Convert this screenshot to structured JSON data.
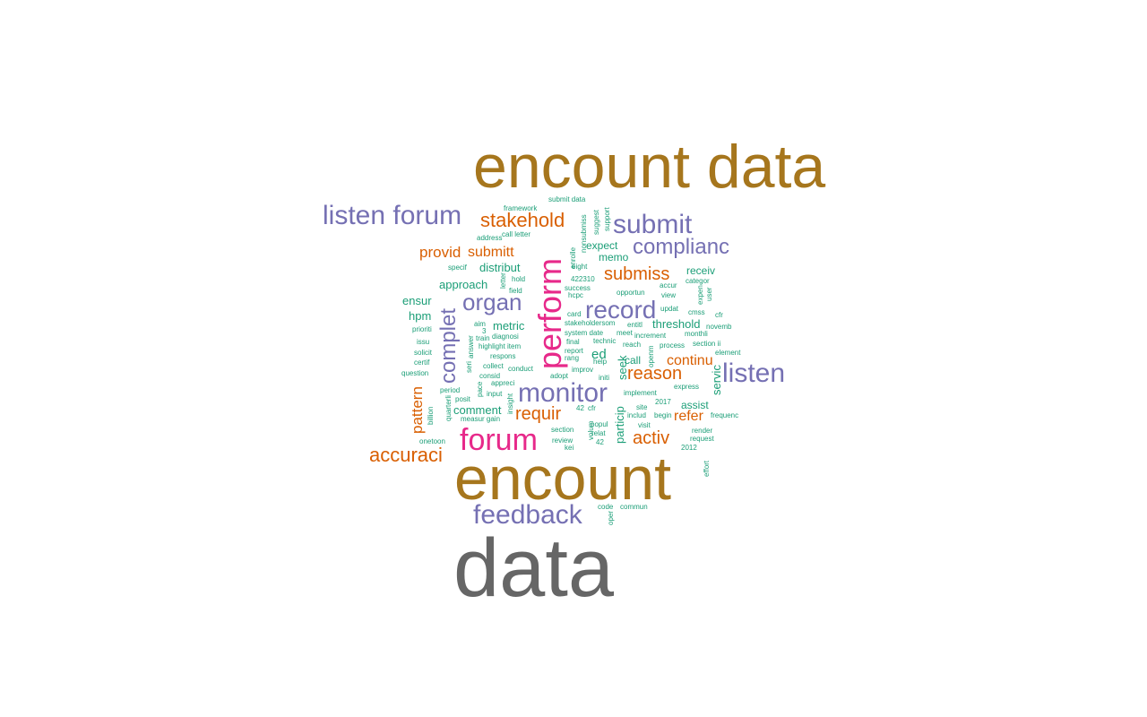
{
  "palette": {
    "gray": "#666666",
    "brown": "#A6761D",
    "magenta": "#E7298A",
    "purple": "#7570B3",
    "orange": "#D95F02",
    "teal": "#1B9E77"
  },
  "words": [
    {
      "text": "data",
      "color": "gray"
    },
    {
      "text": "encount data",
      "color": "brown"
    },
    {
      "text": "encount",
      "color": "brown"
    },
    {
      "text": "perform",
      "color": "magenta"
    },
    {
      "text": "forum",
      "color": "magenta"
    },
    {
      "text": "listen forum",
      "color": "purple"
    },
    {
      "text": "submit",
      "color": "purple"
    },
    {
      "text": "complianc",
      "color": "purple"
    },
    {
      "text": "record",
      "color": "purple"
    },
    {
      "text": "monitor",
      "color": "purple"
    },
    {
      "text": "listen",
      "color": "purple"
    },
    {
      "text": "feedback",
      "color": "purple"
    },
    {
      "text": "organ",
      "color": "purple"
    },
    {
      "text": "complet",
      "color": "purple"
    },
    {
      "text": "stakehold",
      "color": "orange"
    },
    {
      "text": "accuraci",
      "color": "orange"
    },
    {
      "text": "reason",
      "color": "orange"
    },
    {
      "text": "requir",
      "color": "orange"
    },
    {
      "text": "activ",
      "color": "orange"
    },
    {
      "text": "submiss",
      "color": "orange"
    },
    {
      "text": "provid",
      "color": "orange"
    },
    {
      "text": "submitt",
      "color": "orange"
    },
    {
      "text": "continu",
      "color": "orange"
    },
    {
      "text": "refer",
      "color": "orange"
    },
    {
      "text": "pattern",
      "color": "orange"
    },
    {
      "text": "approach",
      "color": "teal"
    },
    {
      "text": "distribut",
      "color": "teal"
    },
    {
      "text": "ensur",
      "color": "teal"
    },
    {
      "text": "hpm",
      "color": "teal"
    },
    {
      "text": "metric",
      "color": "teal"
    },
    {
      "text": "comment",
      "color": "teal"
    },
    {
      "text": "threshold",
      "color": "teal"
    },
    {
      "text": "receiv",
      "color": "teal"
    },
    {
      "text": "memo",
      "color": "teal"
    },
    {
      "text": "expect",
      "color": "teal"
    },
    {
      "text": "call",
      "color": "teal"
    },
    {
      "text": "ed",
      "color": "teal"
    },
    {
      "text": "assist",
      "color": "teal"
    },
    {
      "text": "servic",
      "color": "teal"
    },
    {
      "text": "seek",
      "color": "teal"
    },
    {
      "text": "particip",
      "color": "teal"
    },
    {
      "text": "submit data",
      "color": "teal"
    },
    {
      "text": "framework",
      "color": "teal"
    },
    {
      "text": "call letter",
      "color": "teal"
    },
    {
      "text": "address",
      "color": "teal"
    },
    {
      "text": "specif",
      "color": "teal"
    },
    {
      "text": "hold",
      "color": "teal"
    },
    {
      "text": "field",
      "color": "teal"
    },
    {
      "text": "letter",
      "color": "teal"
    },
    {
      "text": "aim",
      "color": "teal"
    },
    {
      "text": "3",
      "color": "teal"
    },
    {
      "text": "train",
      "color": "teal"
    },
    {
      "text": "diagnosi",
      "color": "teal"
    },
    {
      "text": "highlight item",
      "color": "teal"
    },
    {
      "text": "respons",
      "color": "teal"
    },
    {
      "text": "collect",
      "color": "teal"
    },
    {
      "text": "conduct",
      "color": "teal"
    },
    {
      "text": "consid",
      "color": "teal"
    },
    {
      "text": "appreci",
      "color": "teal"
    },
    {
      "text": "input",
      "color": "teal"
    },
    {
      "text": "period",
      "color": "teal"
    },
    {
      "text": "posit",
      "color": "teal"
    },
    {
      "text": "measur gain",
      "color": "teal"
    },
    {
      "text": "prioriti",
      "color": "teal"
    },
    {
      "text": "issu",
      "color": "teal"
    },
    {
      "text": "solicit",
      "color": "teal"
    },
    {
      "text": "certif",
      "color": "teal"
    },
    {
      "text": "question",
      "color": "teal"
    },
    {
      "text": "onetoon",
      "color": "teal"
    },
    {
      "text": "billion",
      "color": "teal"
    },
    {
      "text": "quarterli",
      "color": "teal"
    },
    {
      "text": "answer",
      "color": "teal"
    },
    {
      "text": "seri",
      "color": "teal"
    },
    {
      "text": "insight",
      "color": "teal"
    },
    {
      "text": "pace",
      "color": "teal"
    },
    {
      "text": "suggest",
      "color": "teal"
    },
    {
      "text": "support",
      "color": "teal"
    },
    {
      "text": "nonsubmiss",
      "color": "teal"
    },
    {
      "text": "enrolle",
      "color": "teal"
    },
    {
      "text": "eight",
      "color": "teal"
    },
    {
      "text": "success",
      "color": "teal"
    },
    {
      "text": "422310",
      "color": "teal"
    },
    {
      "text": "hcpc",
      "color": "teal"
    },
    {
      "text": "opportun",
      "color": "teal"
    },
    {
      "text": "card",
      "color": "teal"
    },
    {
      "text": "stakeholdersom",
      "color": "teal"
    },
    {
      "text": "entitl",
      "color": "teal"
    },
    {
      "text": "system date",
      "color": "teal"
    },
    {
      "text": "meet",
      "color": "teal"
    },
    {
      "text": "final",
      "color": "teal"
    },
    {
      "text": "technic",
      "color": "teal"
    },
    {
      "text": "increment",
      "color": "teal"
    },
    {
      "text": "report",
      "color": "teal"
    },
    {
      "text": "reach",
      "color": "teal"
    },
    {
      "text": "rang",
      "color": "teal"
    },
    {
      "text": "help",
      "color": "teal"
    },
    {
      "text": "improv",
      "color": "teal"
    },
    {
      "text": "adopt",
      "color": "teal"
    },
    {
      "text": "initi",
      "color": "teal"
    },
    {
      "text": "implement",
      "color": "teal"
    },
    {
      "text": "42",
      "color": "teal"
    },
    {
      "text": "cfr",
      "color": "teal"
    },
    {
      "text": "site",
      "color": "teal"
    },
    {
      "text": "includ",
      "color": "teal"
    },
    {
      "text": "visit",
      "color": "teal"
    },
    {
      "text": "popul",
      "color": "teal"
    },
    {
      "text": "relat",
      "color": "teal"
    },
    {
      "text": "42",
      "color": "teal"
    },
    {
      "text": "section",
      "color": "teal"
    },
    {
      "text": "review",
      "color": "teal"
    },
    {
      "text": "kei",
      "color": "teal"
    },
    {
      "text": "volum",
      "color": "teal"
    },
    {
      "text": "accur",
      "color": "teal"
    },
    {
      "text": "view",
      "color": "teal"
    },
    {
      "text": "categor",
      "color": "teal"
    },
    {
      "text": "expen",
      "color": "teal"
    },
    {
      "text": "user",
      "color": "teal"
    },
    {
      "text": "updat",
      "color": "teal"
    },
    {
      "text": "cmss",
      "color": "teal"
    },
    {
      "text": "novemb",
      "color": "teal"
    },
    {
      "text": "monthli",
      "color": "teal"
    },
    {
      "text": "cfr",
      "color": "teal"
    },
    {
      "text": "section ii",
      "color": "teal"
    },
    {
      "text": "element",
      "color": "teal"
    },
    {
      "text": "process",
      "color": "teal"
    },
    {
      "text": "express",
      "color": "teal"
    },
    {
      "text": "begin",
      "color": "teal"
    },
    {
      "text": "2017",
      "color": "teal"
    },
    {
      "text": "frequenc",
      "color": "teal"
    },
    {
      "text": "render",
      "color": "teal"
    },
    {
      "text": "request",
      "color": "teal"
    },
    {
      "text": "2012",
      "color": "teal"
    },
    {
      "text": "effort",
      "color": "teal"
    },
    {
      "text": "code",
      "color": "teal"
    },
    {
      "text": "commun",
      "color": "teal"
    },
    {
      "text": "oper",
      "color": "teal"
    },
    {
      "text": "openm",
      "color": "teal"
    }
  ]
}
